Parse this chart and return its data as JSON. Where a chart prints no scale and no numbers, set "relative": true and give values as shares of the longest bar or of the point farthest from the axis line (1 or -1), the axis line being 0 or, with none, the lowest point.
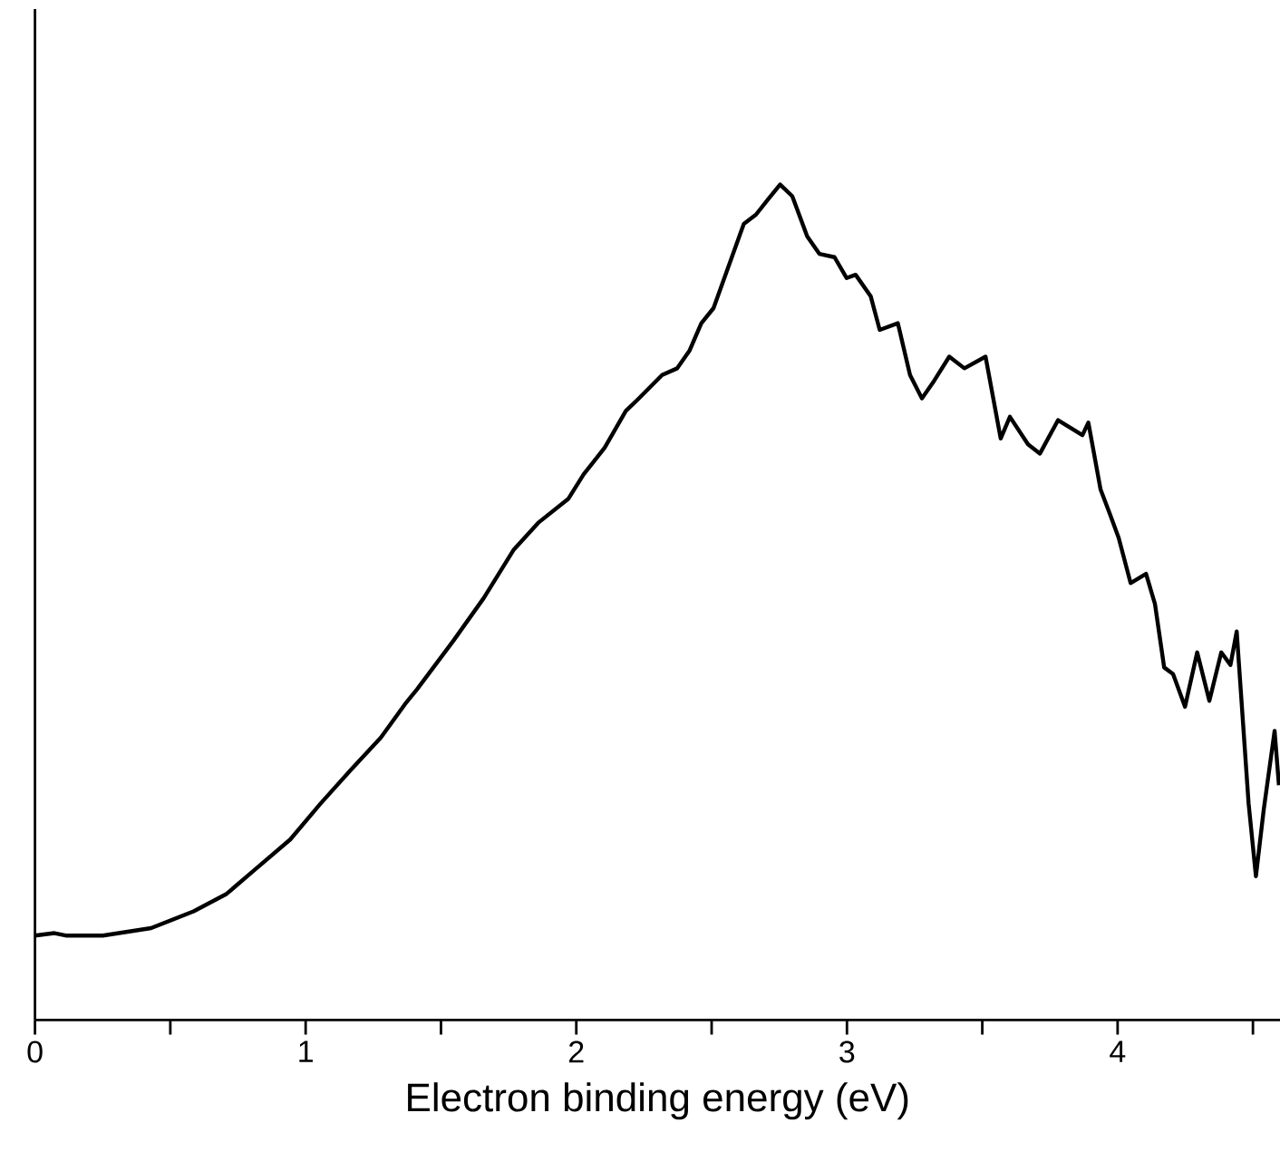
{
  "chart_data": {
    "type": "line",
    "xlabel": "Electron binding energy (eV)",
    "relative": true,
    "xlim": [
      0,
      4.6
    ],
    "xticks": [
      0,
      {
        "value": 0.5,
        "label": null
      },
      1,
      {
        "value": 1.5,
        "label": null
      },
      2,
      {
        "value": 2.5,
        "label": null
      },
      3,
      {
        "value": 3.5,
        "label": null
      },
      4,
      {
        "value": 4.5,
        "label": null
      }
    ],
    "series": [
      {
        "color": "#000000",
        "x": [
          0.0,
          0.072,
          0.117,
          0.251,
          0.429,
          0.586,
          0.708,
          0.809,
          0.943,
          1.055,
          1.166,
          1.278,
          1.367,
          1.412,
          1.546,
          1.658,
          1.769,
          1.859,
          1.971,
          2.027,
          2.105,
          2.183,
          2.228,
          2.317,
          2.373,
          2.418,
          2.462,
          2.507,
          2.619,
          2.664,
          2.708,
          2.753,
          2.798,
          2.853,
          2.898,
          2.954,
          2.999,
          3.032,
          3.088,
          3.121,
          3.188,
          3.233,
          3.277,
          3.322,
          3.378,
          3.434,
          3.512,
          3.568,
          3.602,
          3.669,
          3.713,
          3.78,
          3.87,
          3.892,
          3.937,
          3.971,
          4.004,
          4.048,
          4.105,
          4.138,
          4.172,
          4.205,
          4.249,
          4.294,
          4.339,
          4.383,
          4.417,
          4.44,
          4.484,
          4.511,
          4.54,
          4.58,
          4.596
        ],
        "values": [
          0.101,
          0.104,
          0.101,
          0.101,
          0.11,
          0.13,
          0.151,
          0.179,
          0.216,
          0.259,
          0.299,
          0.338,
          0.378,
          0.396,
          0.454,
          0.505,
          0.563,
          0.595,
          0.624,
          0.653,
          0.685,
          0.729,
          0.743,
          0.772,
          0.78,
          0.801,
          0.834,
          0.852,
          0.953,
          0.964,
          0.982,
          1.0,
          0.986,
          0.938,
          0.917,
          0.913,
          0.888,
          0.892,
          0.866,
          0.826,
          0.834,
          0.772,
          0.744,
          0.765,
          0.794,
          0.78,
          0.794,
          0.696,
          0.722,
          0.689,
          0.678,
          0.718,
          0.7,
          0.715,
          0.635,
          0.606,
          0.577,
          0.523,
          0.534,
          0.498,
          0.422,
          0.414,
          0.375,
          0.44,
          0.382,
          0.44,
          0.425,
          0.465,
          0.259,
          0.172,
          0.252,
          0.346,
          0.281
        ]
      }
    ]
  }
}
